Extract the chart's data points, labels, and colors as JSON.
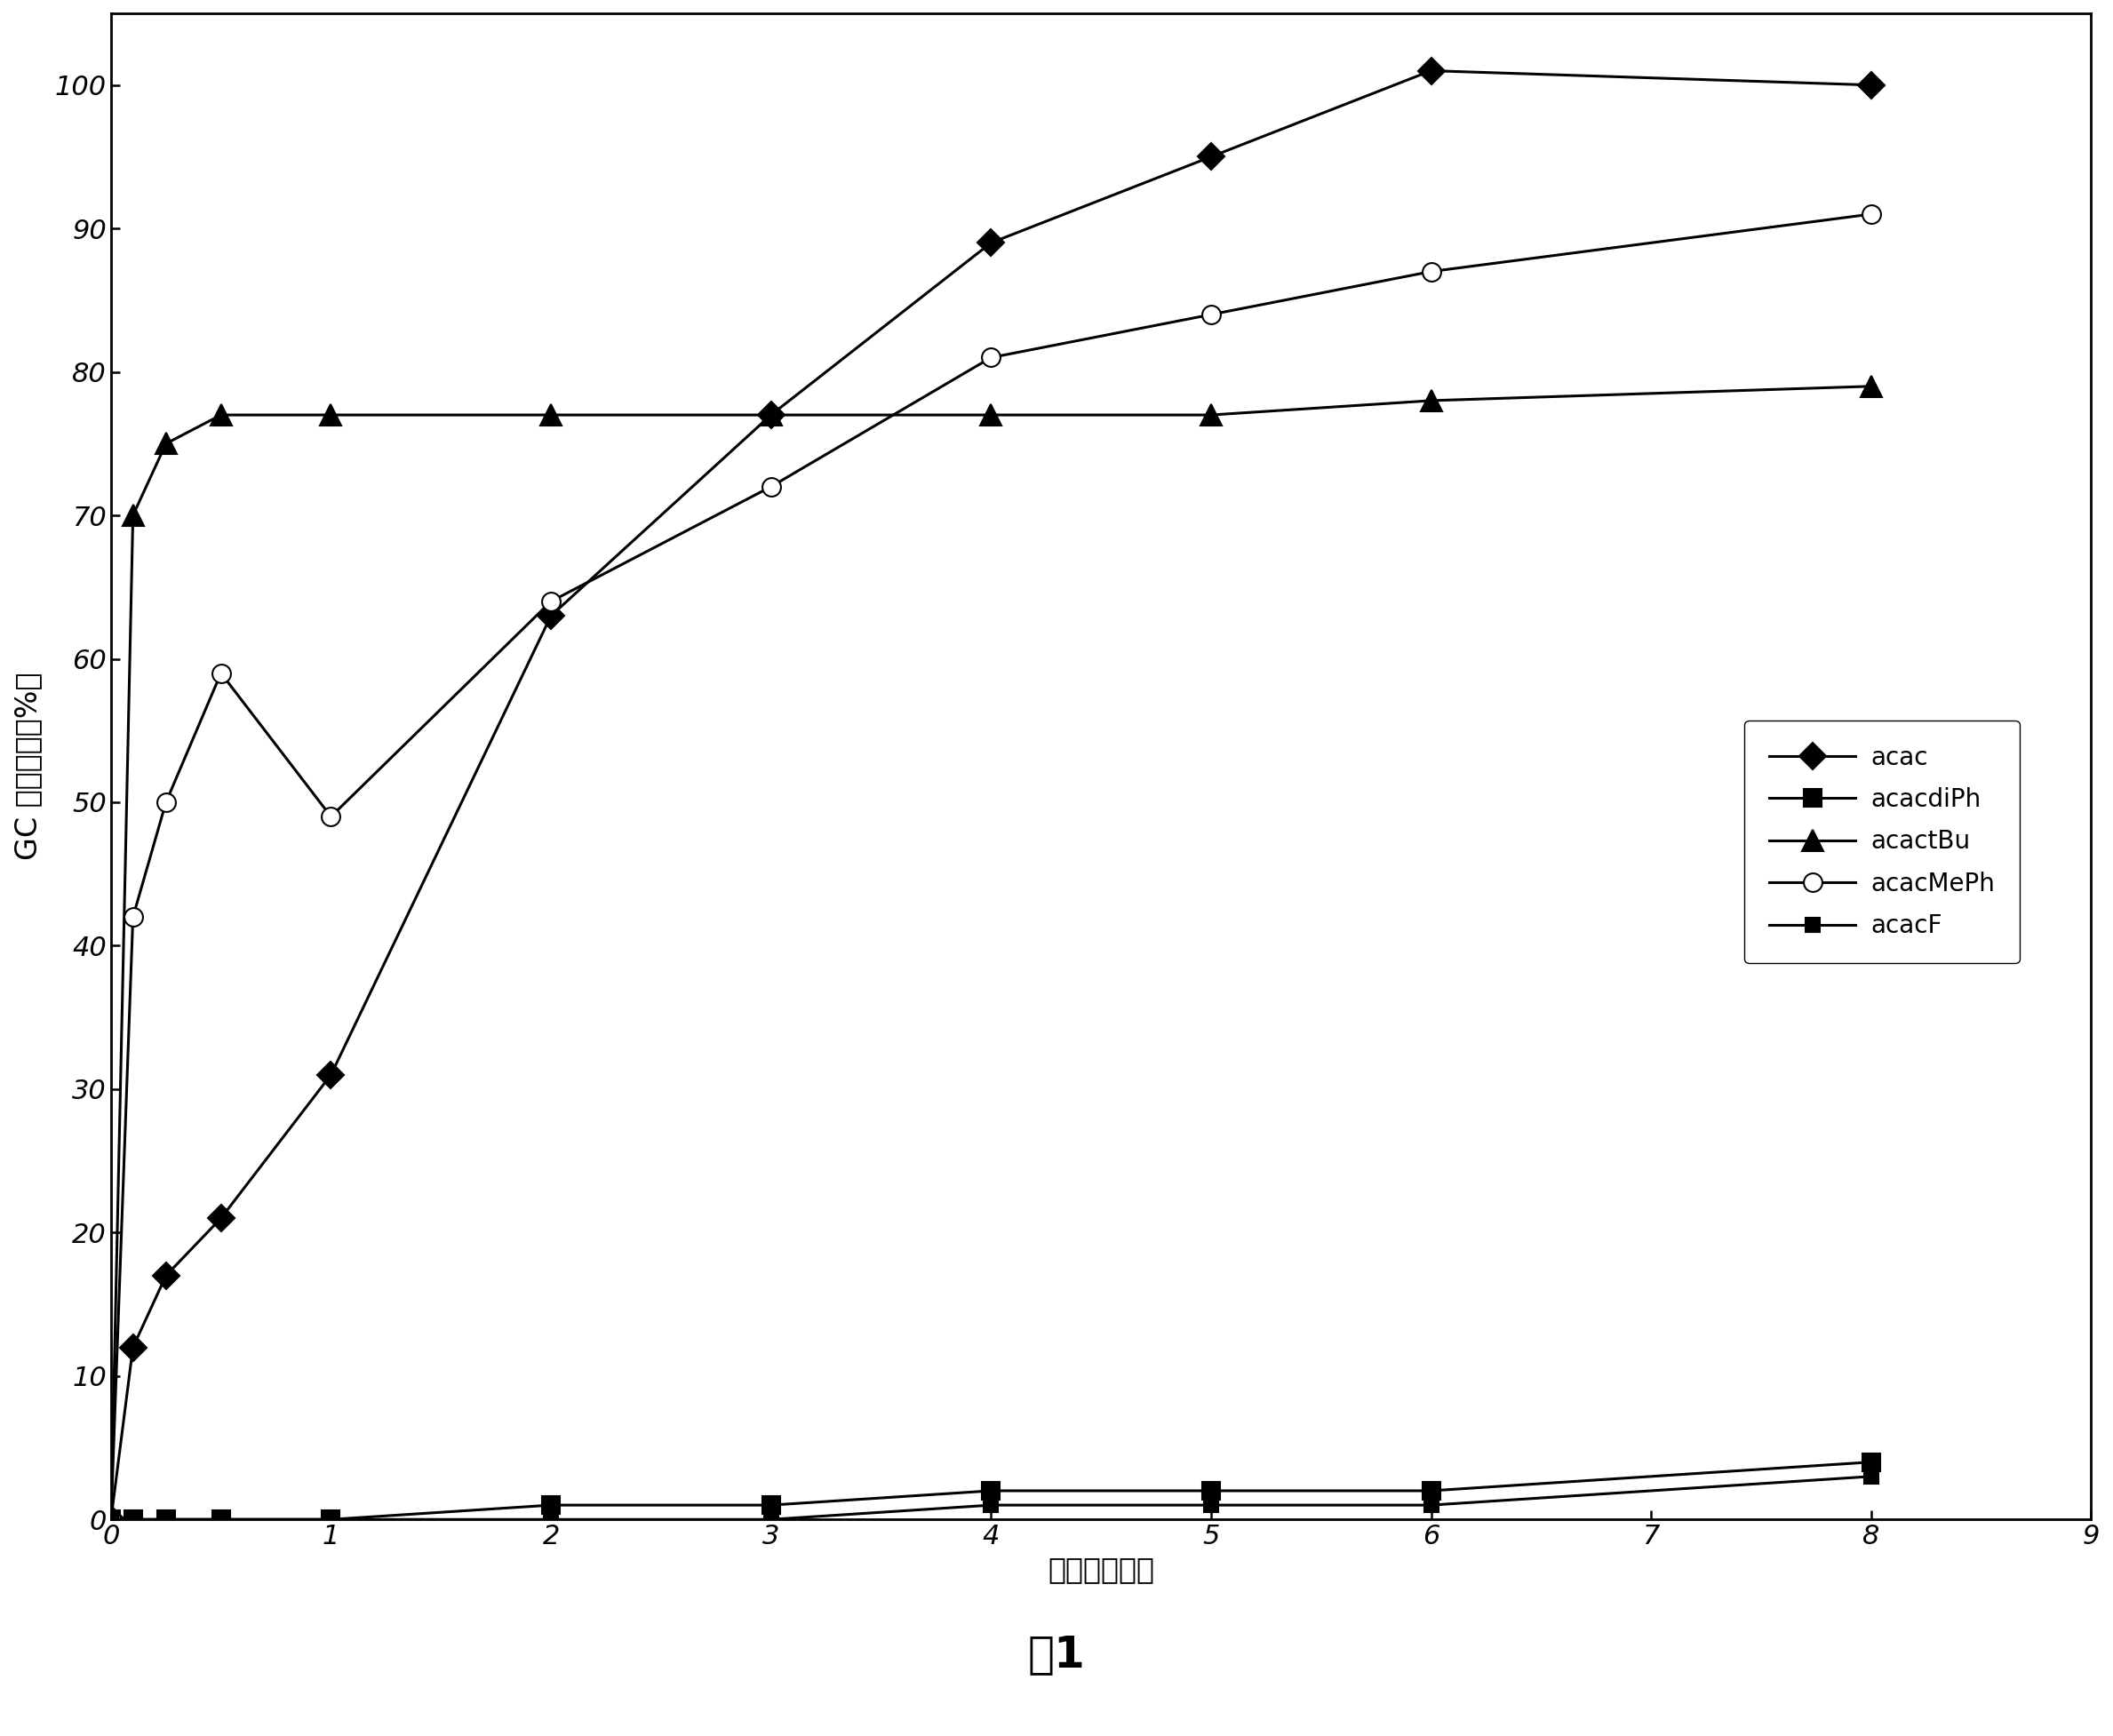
{
  "series": {
    "acac": {
      "x": [
        0,
        0.1,
        0.25,
        0.5,
        1,
        2,
        3,
        4,
        5,
        6,
        8
      ],
      "y": [
        0,
        12,
        17,
        21,
        31,
        63,
        77,
        89,
        95,
        101,
        100
      ],
      "label": "acac"
    },
    "acacdiPh": {
      "x": [
        0,
        0.1,
        0.25,
        0.5,
        1,
        2,
        3,
        4,
        5,
        6,
        8
      ],
      "y": [
        0,
        0,
        0,
        0,
        0,
        1,
        1,
        2,
        2,
        2,
        4
      ],
      "label": "acacdiPh"
    },
    "acactBu": {
      "x": [
        0,
        0.1,
        0.25,
        0.5,
        1,
        2,
        3,
        4,
        5,
        6,
        8
      ],
      "y": [
        0,
        70,
        75,
        77,
        77,
        77,
        77,
        77,
        77,
        78,
        79
      ],
      "label": "acactBu"
    },
    "acacMePh": {
      "x": [
        0,
        0.1,
        0.25,
        0.5,
        1,
        2,
        3,
        4,
        5,
        6,
        8
      ],
      "y": [
        0,
        42,
        50,
        59,
        49,
        64,
        72,
        81,
        84,
        87,
        91
      ],
      "label": "acacMePh"
    },
    "acacF": {
      "x": [
        0,
        0.1,
        0.25,
        0.5,
        1,
        2,
        3,
        4,
        5,
        6,
        8
      ],
      "y": [
        0,
        0,
        0,
        0,
        0,
        0,
        0,
        1,
        1,
        1,
        3
      ],
      "label": "acacF"
    }
  },
  "xlabel": "时间（小时）",
  "ylabel": "GC 转化（面积%）",
  "title": "图1",
  "xlim": [
    0,
    9
  ],
  "ylim": [
    0,
    105
  ],
  "xticks": [
    0,
    1,
    2,
    3,
    4,
    5,
    6,
    7,
    8,
    9
  ],
  "yticks": [
    0,
    10,
    20,
    30,
    40,
    50,
    60,
    70,
    80,
    90,
    100
  ],
  "line_color": "#000000",
  "background_color": "#ffffff",
  "legend_fontsize": 20,
  "axis_fontsize": 24,
  "tick_fontsize": 22,
  "title_fontsize": 36,
  "linewidth": 2.2,
  "marker_configs": {
    "acac": {
      "marker": "D",
      "mfc": "#000000",
      "mec": "#000000",
      "ms": 15
    },
    "acacdiPh": {
      "marker": "s",
      "mfc": "#000000",
      "mec": "#000000",
      "ms": 14
    },
    "acactBu": {
      "marker": "^",
      "mfc": "#000000",
      "mec": "#000000",
      "ms": 17
    },
    "acacMePh": {
      "marker": "o",
      "mfc": "white",
      "mec": "#000000",
      "ms": 15
    },
    "acacF": {
      "marker": "s",
      "mfc": "#000000",
      "mec": "#000000",
      "ms": 11
    }
  },
  "series_order": [
    "acac",
    "acacdiPh",
    "acactBu",
    "acacMePh",
    "acacF"
  ]
}
